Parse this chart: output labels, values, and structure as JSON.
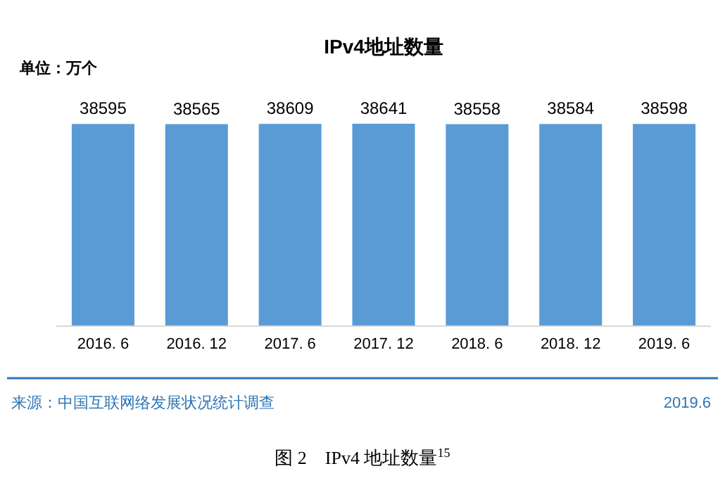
{
  "chart_data": {
    "type": "bar",
    "title": "IPv4地址数量",
    "ylabel": "单位：万个",
    "categories": [
      "2016. 6",
      "2016. 12",
      "2017. 6",
      "2017. 12",
      "2018. 6",
      "2018. 12",
      "2019. 6"
    ],
    "values": [
      38595,
      38565,
      38609,
      38641,
      38558,
      38584,
      38598
    ],
    "color": "#5b9bd5",
    "data_labels": true,
    "tick_labels": "x",
    "annotations": [
      "来源：中国互联网络发展状况统计调查",
      "2019.6",
      "图 2　IPv4 地址数量$^{15}$"
    ]
  }
}
